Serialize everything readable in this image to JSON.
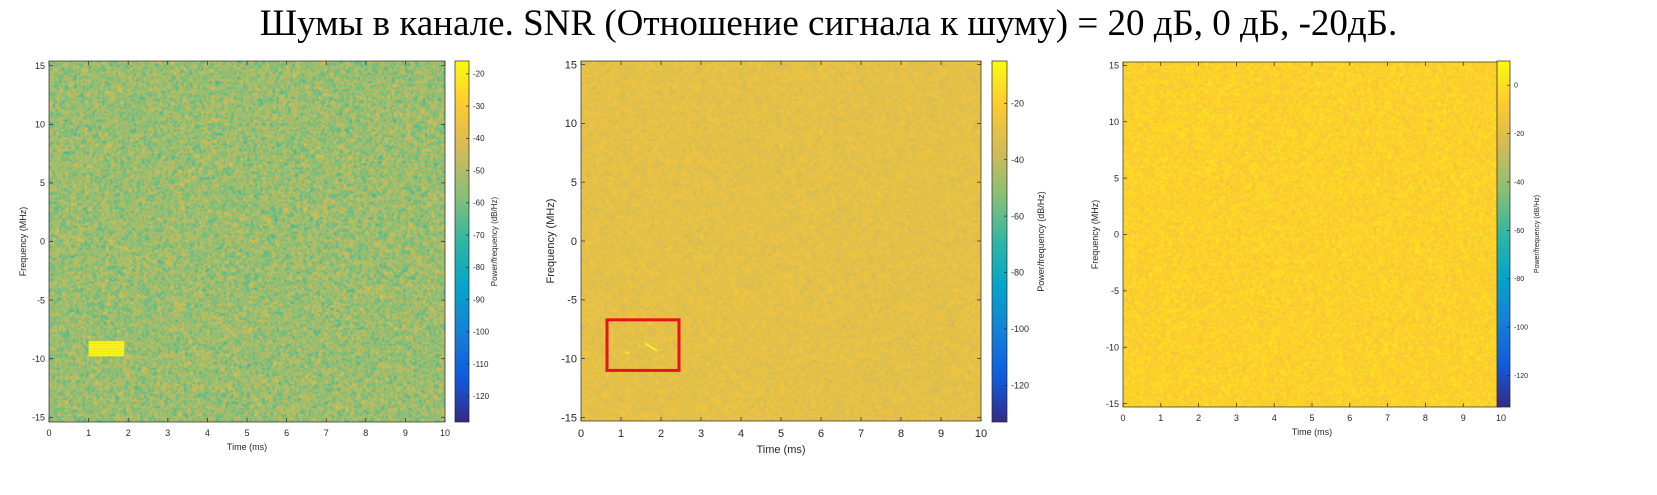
{
  "figure": {
    "title": "Шумы в канале. SNR (Отношение сигнала к шуму) = 20 дБ, 0 дБ, -20дБ."
  },
  "colors": {
    "parula": [
      "#352a87",
      "#0f5cdd",
      "#1481d6",
      "#06a4ca",
      "#2eb7a4",
      "#87bf77",
      "#d1bb59",
      "#fec832",
      "#f9fb0e"
    ],
    "highlight_box": "#e8141c",
    "axis": "#262626"
  },
  "chart_data": [
    {
      "type": "heatmap",
      "snr_db": 20,
      "xlabel": "Time (ms)",
      "ylabel": "Frequency (MHz)",
      "colorbar_label": "Power/frequency (dB/Hz)",
      "xlim": [
        0,
        10
      ],
      "ylim": [
        -15.4,
        15.4
      ],
      "x_ticks": [
        0,
        1,
        2,
        3,
        4,
        5,
        6,
        7,
        8,
        9,
        10
      ],
      "y_ticks": [
        -15,
        -10,
        -5,
        0,
        5,
        10,
        15
      ],
      "clim": [
        -128,
        -16
      ],
      "colorbar_ticks": [
        -20,
        -30,
        -40,
        -50,
        -60,
        -70,
        -80,
        -90,
        -100,
        -110,
        -120
      ],
      "noise_level_db": -54,
      "noise_spread_db": 12,
      "signal": {
        "t_range_ms": [
          1.0,
          1.9
        ],
        "f_range_mhz": [
          -9.8,
          -8.5
        ],
        "level_db": -18
      },
      "highlight_box": null
    },
    {
      "type": "heatmap",
      "snr_db": 0,
      "xlabel": "Time (ms)",
      "ylabel": "Frequency (MHz)",
      "colorbar_label": "Power/frequency (dB/Hz)",
      "xlim": [
        0,
        10
      ],
      "ylim": [
        -15.3,
        15.3
      ],
      "x_ticks": [
        0,
        1,
        2,
        3,
        4,
        5,
        6,
        7,
        8,
        9,
        10
      ],
      "y_ticks": [
        -15,
        -10,
        -5,
        0,
        5,
        10,
        15
      ],
      "clim": [
        -133,
        -5
      ],
      "colorbar_ticks": [
        -20,
        -40,
        -60,
        -80,
        -100,
        -120
      ],
      "noise_level_db": -30,
      "noise_spread_db": 6,
      "signal": {
        "t_range_ms": [
          1.0,
          1.9
        ],
        "f_range_mhz": [
          -9.8,
          -8.5
        ],
        "level_db": -18
      },
      "highlight_box": {
        "t_range_ms": [
          0.65,
          2.45
        ],
        "f_range_mhz": [
          -11.0,
          -6.7
        ]
      }
    },
    {
      "type": "heatmap",
      "snr_db": -20,
      "xlabel": "Time (ms)",
      "ylabel": "Frequency (MHz)",
      "colorbar_label": "Power/frequency (dB/Hz)",
      "xlim": [
        0,
        10
      ],
      "ylim": [
        -15.3,
        15.3
      ],
      "x_ticks": [
        0,
        1,
        2,
        3,
        4,
        5,
        6,
        7,
        8,
        9,
        10
      ],
      "y_ticks": [
        -15,
        -10,
        -5,
        0,
        5,
        10,
        15
      ],
      "clim": [
        -133,
        10
      ],
      "colorbar_ticks": [
        0,
        -20,
        -40,
        -60,
        -80,
        -100,
        -120
      ],
      "noise_level_db": -5,
      "noise_spread_db": 7,
      "signal": null,
      "highlight_box": null
    }
  ]
}
